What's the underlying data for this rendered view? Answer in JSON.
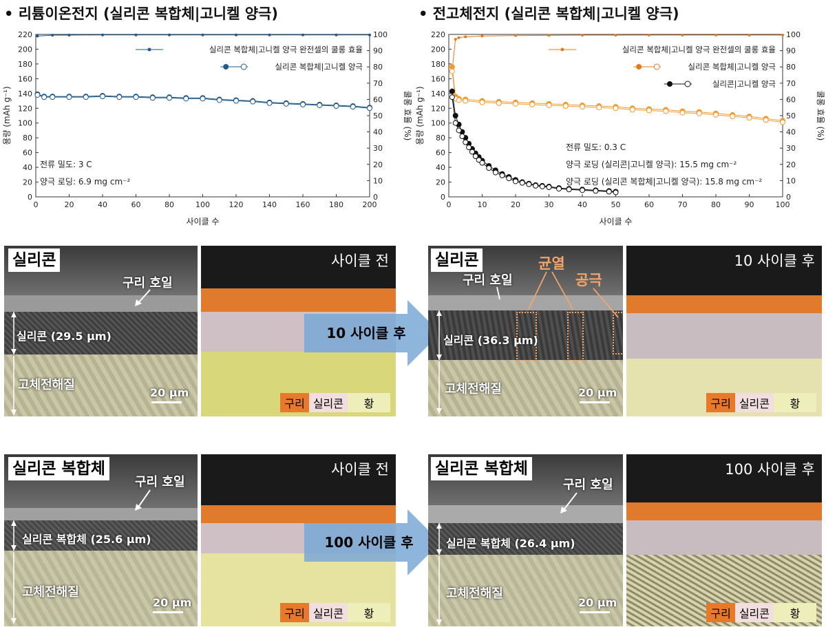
{
  "headings": {
    "left": "• 리튬이온전지 (실리콘 복합체|고니켈 양극)",
    "right": "• 전고체전지 (실리콘 복합체|고니켈 양극)"
  },
  "chart_data": [
    {
      "type": "scatter",
      "xlabel": "사이클 수",
      "ylabel": "용량 (mAh g⁻¹)",
      "ylabel2": "쿨롱 효율 (%)",
      "xlim": [
        0,
        200
      ],
      "ylim": [
        0,
        220
      ],
      "y2lim": [
        0,
        100
      ],
      "xticks": [
        "0",
        "20",
        "40",
        "60",
        "80",
        "100",
        "120",
        "140",
        "160",
        "180",
        "200"
      ],
      "yticks": [
        "0",
        "20",
        "40",
        "60",
        "80",
        "100",
        "120",
        "140",
        "160",
        "180",
        "200",
        "220"
      ],
      "y2ticks": [
        "0",
        "10",
        "20",
        "30",
        "40",
        "50",
        "60",
        "70",
        "80",
        "90",
        "100"
      ],
      "legend": [
        "실리콘 복합체|고니켈 양극 완전셀의 쿨롱 효율",
        "실리콘 복합체|고니켈 양극"
      ],
      "annotations": [
        "전류 밀도: 3 C",
        "양극 로딩: 6.9 mg cm⁻²"
      ],
      "series": [
        {
          "name": "실리콘 복합체|고니켈 양극 완전셀의 쿨롱 효율",
          "axis": "y2",
          "color": "#1f5a8a",
          "marker": "star",
          "x": [
            1,
            10,
            20,
            40,
            60,
            80,
            100,
            120,
            140,
            160,
            180,
            200
          ],
          "values": [
            99,
            99.5,
            99.6,
            99.7,
            99.7,
            99.7,
            99.7,
            99.7,
            99.7,
            99.7,
            99.7,
            99.7
          ]
        },
        {
          "name": "실리콘 복합체|고니켈 양극 (discharge)",
          "axis": "y",
          "color": "#1f5a8a",
          "marker": "filled",
          "x": [
            1,
            5,
            10,
            20,
            30,
            40,
            50,
            60,
            70,
            80,
            90,
            100,
            110,
            120,
            130,
            140,
            150,
            160,
            170,
            180,
            190,
            200
          ],
          "values": [
            139,
            136,
            136,
            136,
            136,
            137,
            136,
            136,
            135,
            135,
            134,
            134,
            132,
            131,
            130,
            128,
            127,
            126,
            125,
            124,
            123,
            121
          ]
        },
        {
          "name": "실리콘 복합체|고니켈 양극 (charge)",
          "axis": "y",
          "color": "#1f5a8a",
          "marker": "open",
          "x": [
            1,
            5,
            10,
            20,
            30,
            40,
            50,
            60,
            70,
            80,
            90,
            100,
            110,
            120,
            130,
            140,
            150,
            160,
            170,
            180,
            190,
            200
          ],
          "values": [
            138,
            135,
            135,
            135,
            135,
            136,
            135,
            135,
            134,
            134,
            133,
            133,
            131,
            130,
            129,
            127,
            126,
            125,
            124,
            123,
            122,
            120
          ]
        }
      ]
    },
    {
      "type": "scatter",
      "xlabel": "사이클 수",
      "ylabel": "용량 (mAh g⁻¹)",
      "ylabel2": "쿨롱 효율 (%)",
      "xlim": [
        0,
        100
      ],
      "ylim": [
        0,
        220
      ],
      "y2lim": [
        0,
        100
      ],
      "xticks": [
        "0",
        "10",
        "20",
        "30",
        "40",
        "50",
        "60",
        "70",
        "80",
        "90",
        "100"
      ],
      "yticks": [
        "0",
        "20",
        "40",
        "60",
        "80",
        "100",
        "120",
        "140",
        "160",
        "180",
        "200",
        "220"
      ],
      "y2ticks": [
        "0",
        "10",
        "20",
        "30",
        "40",
        "50",
        "60",
        "70",
        "80",
        "90",
        "100"
      ],
      "legend": [
        "실리콘 복합체|고니켈 양극 완전셀의 쿨롱 효율",
        "실리콘 복합체|고니켈 양극",
        "실리콘|고니켈 양극"
      ],
      "annotations": [
        "전류 밀도: 0.3 C",
        "양극 로딩 (실리콘|고니켈 양극): 15.5 mg cm⁻²",
        "양극 로딩 (실리콘 복합체|고니켈 양극): 15.8 mg cm⁻²"
      ],
      "series": [
        {
          "name": "실리콘 복합체|고니켈 양극 완전셀의 쿨롱 효율",
          "axis": "y2",
          "color": "#e07b20",
          "marker": "star",
          "x": [
            1,
            2,
            3,
            5,
            10,
            20,
            30,
            40,
            50,
            60,
            70,
            80,
            90,
            100
          ],
          "values": [
            78,
            97,
            98,
            98.5,
            99,
            99.3,
            99.4,
            99.5,
            99.5,
            99.6,
            99.6,
            99.6,
            99.6,
            99.6
          ]
        },
        {
          "name": "실리콘 복합체|고니켈 양극 (discharge)",
          "axis": "y",
          "color": "#f29a2e",
          "marker": "filled",
          "x": [
            1,
            2,
            3,
            5,
            10,
            15,
            20,
            25,
            30,
            35,
            40,
            45,
            50,
            55,
            60,
            65,
            70,
            75,
            80,
            85,
            90,
            95,
            100
          ],
          "values": [
            176,
            136,
            133,
            132,
            130,
            129,
            128,
            127,
            126,
            125,
            124,
            123,
            122,
            120,
            119,
            118,
            116,
            115,
            113,
            111,
            109,
            106,
            103
          ]
        },
        {
          "name": "실리콘 복합체|고니켈 양극 (charge)",
          "axis": "y",
          "color": "#f29a2e",
          "marker": "open",
          "x": [
            1,
            2,
            3,
            5,
            10,
            15,
            20,
            25,
            30,
            35,
            40,
            45,
            50,
            55,
            60,
            65,
            70,
            75,
            80,
            85,
            90,
            95,
            100
          ],
          "values": [
            170,
            133,
            131,
            130,
            128,
            127,
            126,
            125,
            124,
            123,
            122,
            121,
            120,
            118,
            117,
            116,
            114,
            113,
            111,
            109,
            107,
            104,
            101
          ]
        },
        {
          "name": "실리콘|고니켈 양극 (discharge)",
          "axis": "y",
          "color": "#111111",
          "marker": "filled",
          "x": [
            1,
            2,
            3,
            4,
            5,
            6,
            7,
            8,
            9,
            10,
            12,
            14,
            16,
            18,
            20,
            22,
            24,
            26,
            28,
            30,
            33,
            36,
            40,
            44,
            48,
            50
          ],
          "values": [
            143,
            110,
            98,
            88,
            80,
            72,
            65,
            59,
            54,
            49,
            42,
            36,
            31,
            27,
            23,
            20,
            18,
            16,
            15,
            14,
            12,
            11,
            10,
            9,
            8,
            7
          ]
        },
        {
          "name": "실리콘|고니켈 양극 (charge)",
          "axis": "y",
          "color": "#111111",
          "marker": "open",
          "x": [
            1,
            2,
            3,
            4,
            5,
            6,
            7,
            8,
            9,
            10,
            12,
            14,
            16,
            18,
            20,
            22,
            24,
            26,
            28,
            30,
            33,
            36,
            40,
            44,
            48,
            50
          ],
          "values": [
            135,
            100,
            90,
            82,
            74,
            67,
            61,
            55,
            50,
            46,
            39,
            33,
            29,
            25,
            21,
            19,
            17,
            15,
            14,
            13,
            11,
            10,
            9,
            8,
            7,
            6
          ]
        }
      ]
    }
  ],
  "colors": {
    "copper": "#e8792a",
    "silicon": "#f2dede",
    "sulfur": "#eeeebb",
    "arrow": "#7aa8d6"
  },
  "panels": {
    "row1": {
      "sem_left_label": "실리콘",
      "sem_left_foil": "구리 호일",
      "sem_left_layer": "실리콘 (29.5 μm)",
      "sem_left_electrolyte": "고체전해질",
      "sem_left_scale": "20 μm",
      "eds_left_title": "사이클 전",
      "arrow_text": "10 사이클 후",
      "sem_right_label": "실리콘",
      "sem_right_foil": "구리 호일",
      "sem_right_layer": "실리콘 (36.3 μm)",
      "sem_right_electrolyte": "고체전해질",
      "sem_right_scale": "20 μm",
      "sem_right_crack": "균열",
      "sem_right_pore": "공극",
      "eds_right_title": "10 사이클 후"
    },
    "row2": {
      "sem_left_label": "실리콘 복합체",
      "sem_left_foil": "구리 호일",
      "sem_left_layer": "실리콘 복합체 (25.6 μm)",
      "sem_left_electrolyte": "고체전해질",
      "sem_left_scale": "20 μm",
      "eds_left_title": "사이클 전",
      "arrow_text": "100 사이클 후",
      "sem_right_label": "실리콘 복합체",
      "sem_right_foil": "구리 호일",
      "sem_right_layer": "실리콘 복합체 (26.4 μm)",
      "sem_right_electrolyte": "고체전해질",
      "sem_right_scale": "20 μm",
      "eds_right_title": "100 사이클 후"
    },
    "eds_legend": [
      "구리",
      "실리콘",
      "황"
    ]
  }
}
